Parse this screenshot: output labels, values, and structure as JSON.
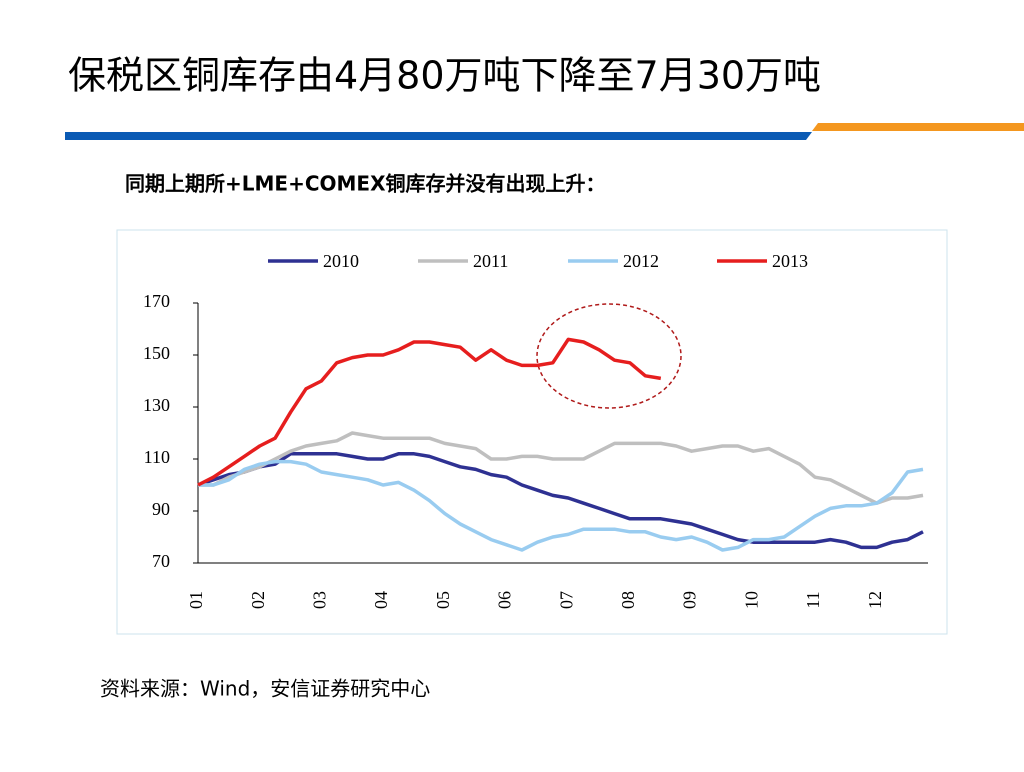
{
  "header": {
    "title": "保税区铜库存由4月80万吨下降至7月30万吨"
  },
  "subtitle": "同期上期所+LME+COMEX铜库存并没有出现上升：",
  "source": "资料来源：Wind，安信证券研究中心",
  "chart_data": {
    "type": "line",
    "categories": [
      "01",
      null,
      null,
      null,
      "02",
      null,
      null,
      null,
      "03",
      null,
      null,
      null,
      "04",
      null,
      null,
      null,
      "05",
      null,
      null,
      null,
      "06",
      null,
      null,
      null,
      "07",
      null,
      null,
      null,
      "08",
      null,
      null,
      null,
      "09",
      null,
      null,
      null,
      "10",
      null,
      null,
      null,
      "11",
      null,
      null,
      null,
      "12",
      null,
      null,
      null
    ],
    "series": [
      {
        "name": "2010",
        "color": "#2e3192",
        "values": [
          100,
          102,
          104,
          105,
          107,
          108,
          112,
          112,
          112,
          112,
          111,
          110,
          110,
          112,
          112,
          111,
          109,
          107,
          106,
          104,
          103,
          100,
          98,
          96,
          95,
          93,
          91,
          89,
          87,
          87,
          87,
          86,
          85,
          83,
          81,
          79,
          78,
          78,
          78,
          78,
          78,
          79,
          78,
          76,
          76,
          78,
          79,
          82
        ]
      },
      {
        "name": "2011",
        "color": "#bfbfbf",
        "values": [
          100,
          100,
          103,
          105,
          107,
          110,
          113,
          115,
          116,
          117,
          120,
          119,
          118,
          118,
          118,
          118,
          116,
          115,
          114,
          110,
          110,
          111,
          111,
          110,
          110,
          110,
          113,
          116,
          116,
          116,
          116,
          115,
          113,
          114,
          115,
          115,
          113,
          114,
          111,
          108,
          103,
          102,
          99,
          96,
          93,
          95,
          95,
          96
        ]
      },
      {
        "name": "2012",
        "color": "#99ccf0",
        "values": [
          100,
          100,
          102,
          106,
          108,
          109,
          109,
          108,
          105,
          104,
          103,
          102,
          100,
          101,
          98,
          94,
          89,
          85,
          82,
          79,
          77,
          75,
          78,
          80,
          81,
          83,
          83,
          83,
          82,
          82,
          80,
          79,
          80,
          78,
          75,
          76,
          79,
          79,
          80,
          84,
          88,
          91,
          92,
          92,
          93,
          97,
          105,
          106
        ]
      },
      {
        "name": "2013",
        "color": "#e61e1e",
        "values": [
          100,
          103,
          107,
          111,
          115,
          118,
          128,
          137,
          140,
          147,
          149,
          150,
          150,
          152,
          155,
          155,
          154,
          153,
          148,
          152,
          148,
          146,
          146,
          147,
          156,
          155,
          152,
          148,
          147,
          142,
          141,
          null,
          null,
          null,
          null,
          null,
          null,
          null,
          null,
          null,
          null,
          null,
          null,
          null,
          null,
          null,
          null,
          null
        ]
      }
    ],
    "ylim": [
      70,
      170
    ],
    "yticks": [
      70,
      90,
      110,
      130,
      150,
      170
    ],
    "grid": false,
    "legend": "top"
  }
}
